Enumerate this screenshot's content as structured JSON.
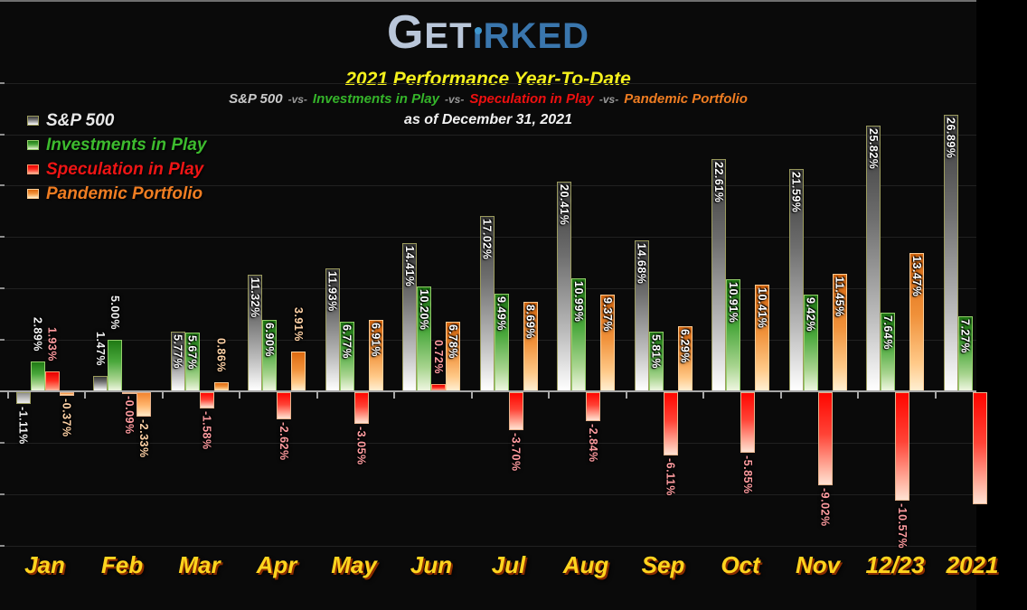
{
  "header": {
    "logo": {
      "g": "G",
      "et": "ET",
      "i": "ı",
      "rked": "RKED"
    },
    "title": "2021 Performance Year-To-Date",
    "subtitle_parts": [
      {
        "text": "S&P 500",
        "color": "#c9c9c9",
        "separator": false
      },
      {
        "text": "-vs-",
        "color": "#9a9a9a",
        "separator": true
      },
      {
        "text": "Investments in Play",
        "color": "#35b42a",
        "separator": false
      },
      {
        "text": "-vs-",
        "color": "#9a9a9a",
        "separator": true
      },
      {
        "text": "Speculation in Play",
        "color": "#ee1010",
        "separator": false
      },
      {
        "text": "-vs-",
        "color": "#9a9a9a",
        "separator": true
      },
      {
        "text": "Pandemic Portfolio",
        "color": "#ef7d22",
        "separator": false
      }
    ],
    "as_of": "as of December 31, 2021"
  },
  "legend": {
    "position": "top-left",
    "items": [
      {
        "label": "S&P 500",
        "color": "#e8e8e8"
      },
      {
        "label": "Investments in Play",
        "color": "#3dbb2e"
      },
      {
        "label": "Speculation in Play",
        "color": "#ee1515"
      },
      {
        "label": "Pandemic Portfolio",
        "color": "#ef7d22"
      }
    ]
  },
  "chart_data": {
    "type": "bar",
    "title": "2021 Performance Year-To-Date",
    "as_of_label": "as of December 31, 2021",
    "unit": "%",
    "grid": true,
    "gridline_step": 5,
    "ylim": [
      -15,
      30
    ],
    "legend_position": "top-left",
    "categories": [
      "Jan",
      "Feb",
      "Mar",
      "Apr",
      "May",
      "Jun",
      "Jul",
      "Aug",
      "Sep",
      "Oct",
      "Nov",
      "12/23",
      "2021"
    ],
    "series": [
      {
        "name": "S&P 500",
        "values": [
          -1.11,
          1.47,
          5.77,
          11.32,
          11.93,
          14.41,
          17.02,
          20.41,
          14.68,
          22.61,
          21.59,
          25.82,
          26.89
        ],
        "labels": [
          "-1.11%",
          "1.47%",
          "5.77%",
          "11.32%",
          "11.93%",
          "14.41%",
          "17.02%",
          "20.41%",
          "14.68%",
          "22.61%",
          "21.59%",
          "25.82%",
          "26.89%"
        ]
      },
      {
        "name": "Investments in Play",
        "values": [
          2.89,
          5.0,
          5.67,
          6.9,
          6.77,
          10.2,
          9.49,
          10.99,
          5.81,
          10.91,
          9.42,
          7.64,
          7.27
        ],
        "labels": [
          "2.89%",
          "5.00%",
          "5.67%",
          "6.90%",
          "6.77%",
          "10.20%",
          "9.49%",
          "10.99%",
          "5.81%",
          "10.91%",
          "9.42%",
          "7.64%",
          "7.27%"
        ]
      },
      {
        "name": "Speculation in Play",
        "values": [
          1.93,
          -0.09,
          -1.58,
          -2.62,
          -3.05,
          0.72,
          -3.7,
          -2.84,
          -6.11,
          -5.85,
          -9.02,
          -10.57,
          -10.9
        ],
        "labels": [
          "1.93%",
          "-0.09%",
          "-1.58%",
          "-2.62%",
          "-3.05%",
          "0.72%",
          "-3.70%",
          "-2.84%",
          "-6.11%",
          "-5.85%",
          "-9.02%",
          "-10.57%",
          ""
        ]
      },
      {
        "name": "Pandemic Portfolio",
        "values": [
          -0.37,
          -2.33,
          0.86,
          3.91,
          6.91,
          6.78,
          8.69,
          9.37,
          6.29,
          10.41,
          11.45,
          13.47,
          null
        ],
        "labels": [
          "-0.37%",
          "-2.33%",
          "0.86%",
          "3.91%",
          "6.91%",
          "6.78%",
          "8.69%",
          "9.37%",
          "6.29%",
          "10.41%",
          "11.45%",
          "13.47%",
          ""
        ]
      }
    ]
  }
}
